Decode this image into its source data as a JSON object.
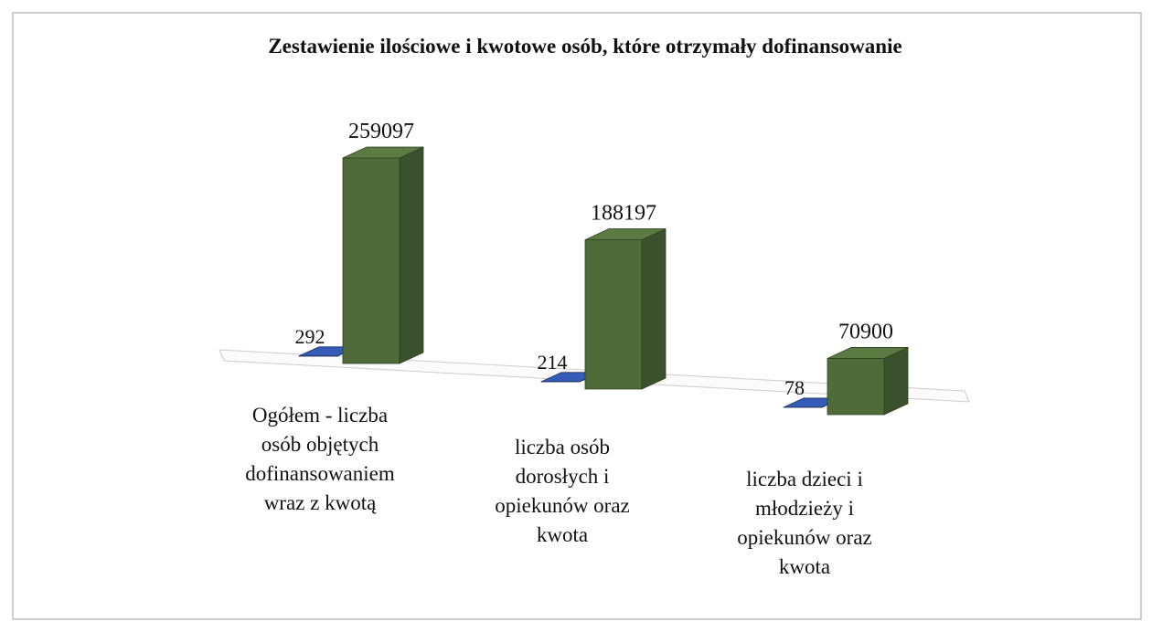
{
  "chart_data": {
    "type": "bar3d",
    "title": "Zestawienie ilościowe i kwotowe osób, które otrzymały dofinansowanie",
    "categories": [
      "Ogółem - liczba osób objętych dofinansowaniem wraz z  kwotą",
      "liczba osób dorosłych i opiekunów oraz kwota",
      "liczba dzieci i młodzieży i opiekunów oraz kwota"
    ],
    "series": [
      {
        "color": "#2f4f9e",
        "values": [
          292,
          214,
          78
        ]
      },
      {
        "color": "#4f6b3a",
        "values": [
          259097,
          188197,
          70900
        ]
      }
    ]
  }
}
